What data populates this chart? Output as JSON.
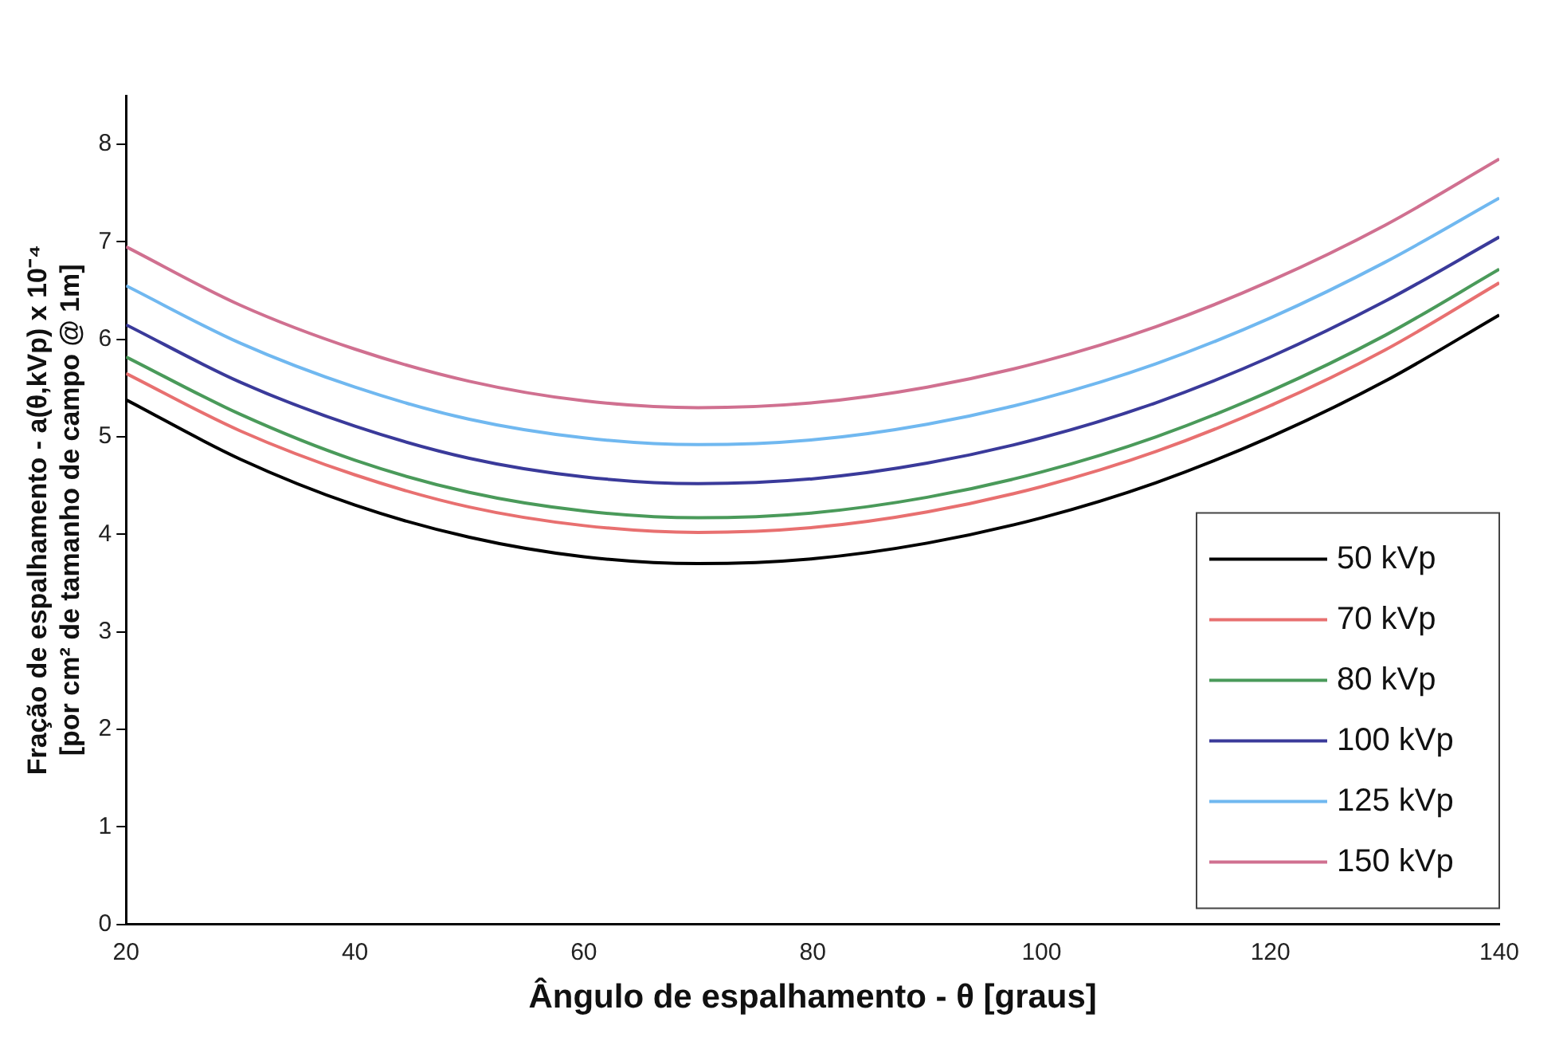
{
  "chart_data": {
    "type": "line",
    "xlabel": "Ângulo de espalhamento - θ [graus]",
    "ylabel": "Fração de espalhamento - a(θ,kVp) x 10⁻⁴\n[por cm² de tamanho de campo @ 1m]",
    "x": [
      20,
      30,
      40,
      50,
      60,
      70,
      80,
      90,
      100,
      110,
      120,
      130,
      140
    ],
    "series": [
      {
        "name": "50 kVp",
        "color": "#000000",
        "values": [
          5.38,
          4.77,
          4.3,
          3.97,
          3.77,
          3.7,
          3.75,
          3.91,
          4.17,
          4.53,
          5.0,
          5.57,
          6.25
        ]
      },
      {
        "name": "70 kVp",
        "color": "#e87070",
        "values": [
          5.65,
          5.06,
          4.61,
          4.28,
          4.09,
          4.02,
          4.07,
          4.23,
          4.49,
          4.85,
          5.32,
          5.89,
          6.58
        ]
      },
      {
        "name": "80 kVp",
        "color": "#4a9a5a",
        "values": [
          5.82,
          5.23,
          4.76,
          4.43,
          4.24,
          4.17,
          4.22,
          4.38,
          4.64,
          5.0,
          5.47,
          6.04,
          6.72
        ]
      },
      {
        "name": "100 kVp",
        "color": "#3a3a9a",
        "values": [
          6.15,
          5.56,
          5.11,
          4.78,
          4.59,
          4.52,
          4.57,
          4.73,
          4.99,
          5.35,
          5.82,
          6.39,
          7.05
        ]
      },
      {
        "name": "125 kVp",
        "color": "#70b8f0",
        "values": [
          6.55,
          5.96,
          5.51,
          5.18,
          4.99,
          4.92,
          4.97,
          5.13,
          5.39,
          5.75,
          6.22,
          6.79,
          7.45
        ]
      },
      {
        "name": "150 kVp",
        "color": "#d07090",
        "values": [
          6.95,
          6.35,
          5.9,
          5.57,
          5.37,
          5.3,
          5.35,
          5.51,
          5.77,
          6.13,
          6.6,
          7.17,
          7.85
        ]
      }
    ],
    "xlim": [
      20,
      140
    ],
    "xticks": [
      20,
      40,
      60,
      80,
      100,
      120,
      140
    ],
    "ylim": [
      0,
      8.5
    ],
    "yticks": [
      0,
      1,
      2,
      3,
      4,
      5,
      6,
      7,
      8
    ],
    "grid": false,
    "legend": "bottom right",
    "marker": "none",
    "line_style": "solid"
  }
}
